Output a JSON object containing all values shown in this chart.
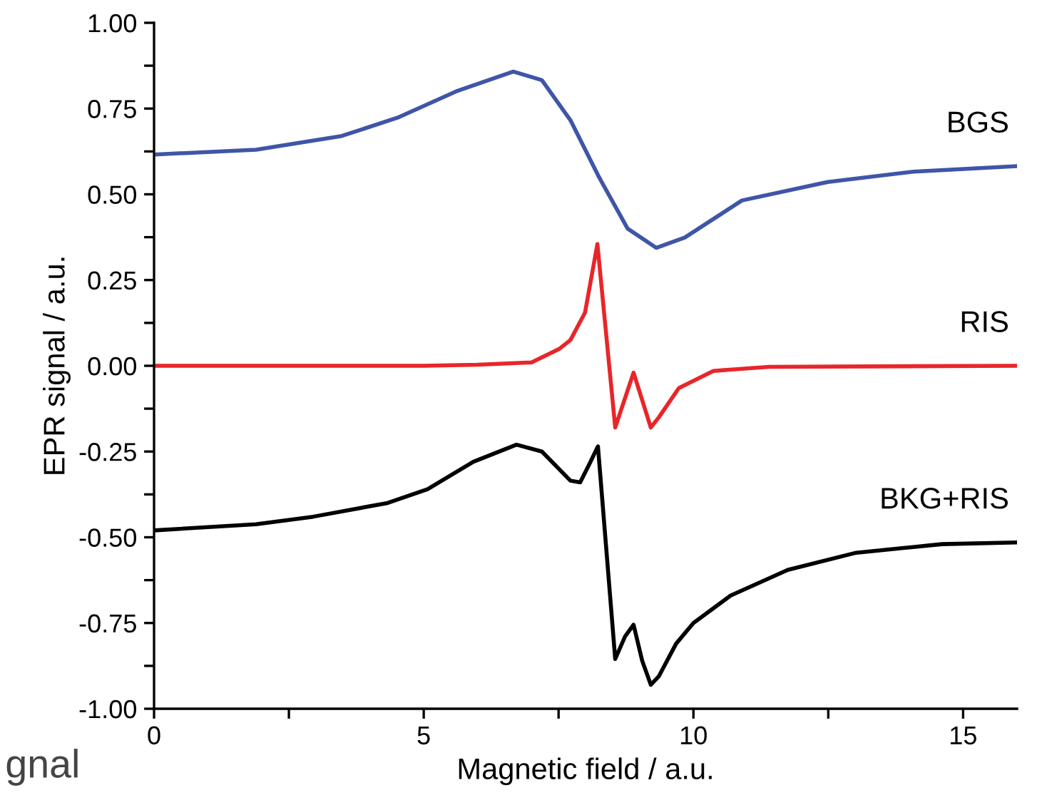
{
  "chart_data": {
    "type": "line",
    "xlabel": "Magnetic field / a.u.",
    "ylabel": "EPR signal / a.u.",
    "xlim": [
      0,
      16
    ],
    "ylim": [
      -1,
      1
    ],
    "xticks": [
      0,
      {
        "value": 2.5,
        "label": null
      },
      5,
      {
        "value": 7.5,
        "label": null
      },
      10,
      {
        "value": 12.5,
        "label": null
      },
      15
    ],
    "yticks": [
      {
        "value": -1,
        "label": "-1.00"
      },
      {
        "value": -0.875,
        "label": null
      },
      {
        "value": -0.75,
        "label": "-0.75"
      },
      {
        "value": -0.625,
        "label": null
      },
      {
        "value": -0.5,
        "label": "-0.50"
      },
      {
        "value": -0.375,
        "label": null
      },
      {
        "value": -0.25,
        "label": "-0.25"
      },
      {
        "value": -0.125,
        "label": null
      },
      {
        "value": 0,
        "label": "0.00"
      },
      {
        "value": 0.125,
        "label": null
      },
      {
        "value": 0.25,
        "label": "0.25"
      },
      {
        "value": 0.375,
        "label": null
      },
      {
        "value": 0.5,
        "label": "0.50"
      },
      {
        "value": 0.625,
        "label": null
      },
      {
        "value": 0.75,
        "label": "0.75"
      },
      {
        "value": 0.875,
        "label": null
      },
      {
        "value": 1,
        "label": "1.00"
      }
    ],
    "grid": false,
    "legend": false,
    "marker": "none",
    "line_style": "solid",
    "annotations": [
      "gnal"
    ],
    "series": [
      {
        "name": "BGS",
        "color": "#3f55a8",
        "x": [
          0,
          1.89,
          3.48,
          4.54,
          5.6,
          6.66,
          7.19,
          7.72,
          8.25,
          8.78,
          9.31,
          9.84,
          10.9,
          12.49,
          14.08,
          16
        ],
        "values": [
          0.616,
          0.63,
          0.67,
          0.725,
          0.8,
          0.858,
          0.833,
          0.716,
          0.55,
          0.4,
          0.344,
          0.374,
          0.482,
          0.536,
          0.566,
          0.582
        ]
      },
      {
        "name": "RIS",
        "color": "#e8262a",
        "x": [
          0,
          5,
          6,
          7,
          7.52,
          7.72,
          7.99,
          8.22,
          8.55,
          8.89,
          9.21,
          9.36,
          9.73,
          10.37,
          11.4,
          16
        ],
        "values": [
          0,
          0,
          0.003,
          0.01,
          0.05,
          0.075,
          0.155,
          0.355,
          -0.18,
          -0.02,
          -0.18,
          -0.15,
          -0.065,
          -0.015,
          -0.003,
          0
        ]
      },
      {
        "name": "BKG+RIS",
        "color": "#000000",
        "x": [
          0,
          1.89,
          2.95,
          4.33,
          5.07,
          5.92,
          6.72,
          7.19,
          7.72,
          7.9,
          8.06,
          8.23,
          8.55,
          8.73,
          8.89,
          9.05,
          9.21,
          9.36,
          9.68,
          10,
          10.69,
          11.75,
          13.02,
          14.61,
          16
        ],
        "values": [
          -0.48,
          -0.462,
          -0.44,
          -0.4,
          -0.36,
          -0.28,
          -0.23,
          -0.25,
          -0.335,
          -0.34,
          -0.29,
          -0.235,
          -0.855,
          -0.79,
          -0.755,
          -0.86,
          -0.93,
          -0.905,
          -0.81,
          -0.75,
          -0.67,
          -0.595,
          -0.545,
          -0.52,
          -0.515
        ]
      }
    ]
  }
}
